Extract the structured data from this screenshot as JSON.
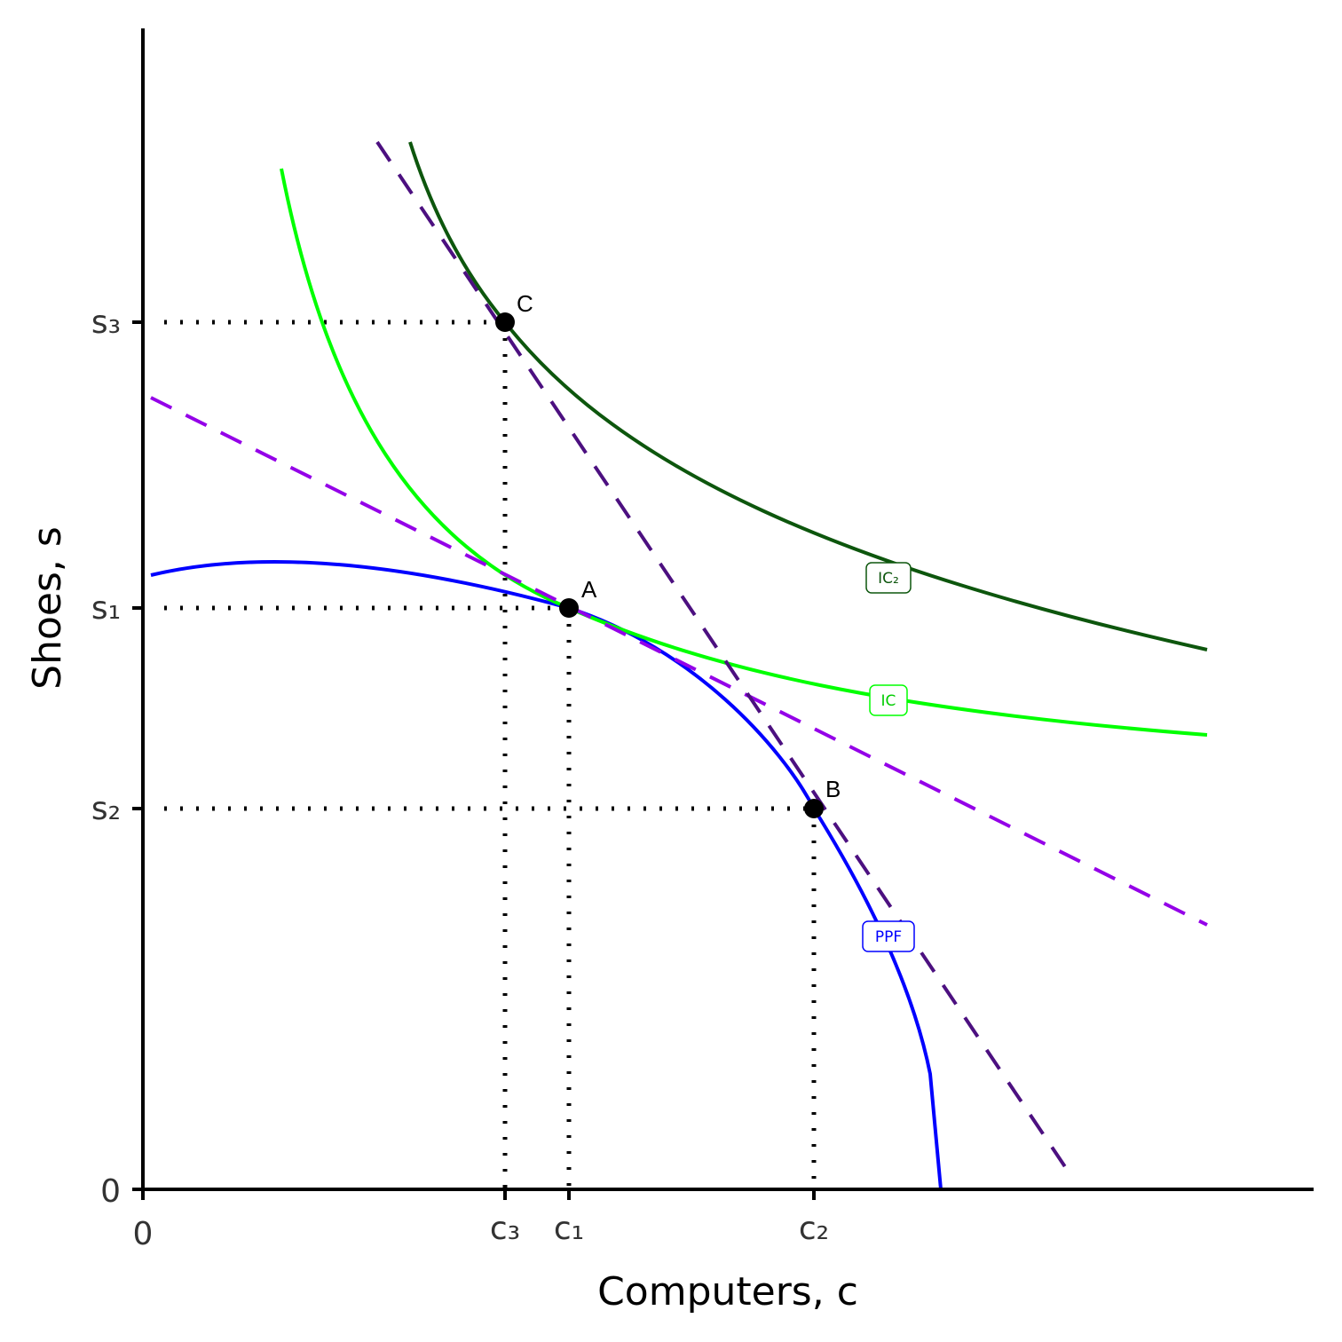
{
  "axes": {
    "x_title": "Computers, c",
    "y_title": "Shoes, s"
  },
  "x_ticks": [
    "0",
    "c₃",
    "c₁",
    "c₂"
  ],
  "y_ticks": [
    "0",
    "s₂",
    "s₁",
    "s₃"
  ],
  "points": [
    "A",
    "B",
    "C"
  ],
  "curve_labels": [
    "PPF",
    "IC",
    "IC₂"
  ]
}
